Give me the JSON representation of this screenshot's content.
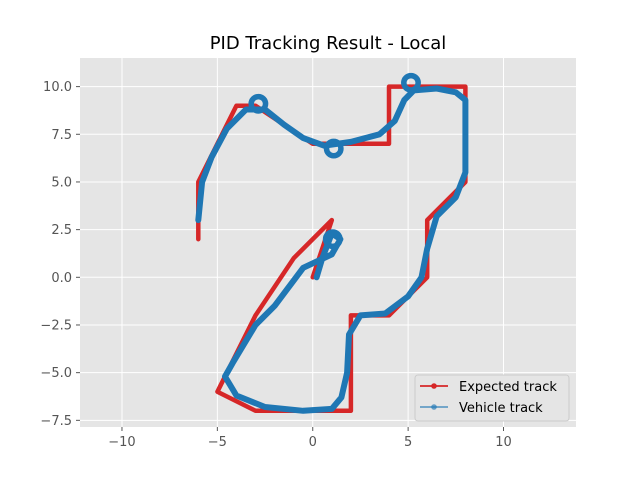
{
  "chart_data": {
    "type": "line",
    "title": "PID Tracking Result - Local",
    "xlabel": "",
    "ylabel": "",
    "xlim": [
      -12.2,
      13.8
    ],
    "ylim": [
      -7.85,
      11.5
    ],
    "x_ticks": [
      -10,
      -5,
      0,
      5,
      10
    ],
    "x_tick_labels": [
      "−10",
      "−5",
      "0",
      "5",
      "10"
    ],
    "y_ticks": [
      -7.5,
      -5.0,
      -2.5,
      0.0,
      2.5,
      5.0,
      7.5,
      10.0
    ],
    "y_tick_labels": [
      "−7.5",
      "−5.0",
      "−2.5",
      "0.0",
      "2.5",
      "5.0",
      "7.5",
      "10.0"
    ],
    "grid": true,
    "legend_position": "lower-right",
    "series": [
      {
        "name": "Expected track",
        "color": "#d62728",
        "points": [
          [
            1.0,
            3.0
          ],
          [
            0.0,
            0.0
          ],
          [
            1.0,
            3.0
          ],
          [
            -1.0,
            1.0
          ],
          [
            -3.0,
            -2.0
          ],
          [
            -5.0,
            -6.0
          ],
          [
            -3.0,
            -7.0
          ],
          [
            2.0,
            -7.0
          ],
          [
            2.0,
            -2.0
          ],
          [
            4.0,
            -2.0
          ],
          [
            6.0,
            0.0
          ],
          [
            6.0,
            3.0
          ],
          [
            8.0,
            5.0
          ],
          [
            8.0,
            10.0
          ],
          [
            4.0,
            10.0
          ],
          [
            4.0,
            7.0
          ],
          [
            0.0,
            7.0
          ],
          [
            -3.0,
            9.0
          ],
          [
            -4.0,
            9.0
          ],
          [
            -6.0,
            5.0
          ],
          [
            -6.0,
            2.0
          ]
        ]
      },
      {
        "name": "Vehicle track",
        "color": "#1f77b4",
        "points": [
          [
            0.2,
            0.0
          ],
          [
            0.5,
            1.0
          ],
          [
            1.0,
            2.3
          ],
          [
            1.45,
            2.0
          ],
          [
            1.0,
            1.2
          ],
          [
            -0.5,
            0.5
          ],
          [
            -2.0,
            -1.5
          ],
          [
            -3.0,
            -2.5
          ],
          [
            -4.2,
            -4.5
          ],
          [
            -4.6,
            -5.2
          ],
          [
            -4.0,
            -6.2
          ],
          [
            -2.5,
            -6.8
          ],
          [
            -0.5,
            -7.0
          ],
          [
            1.0,
            -6.9
          ],
          [
            1.5,
            -6.3
          ],
          [
            1.8,
            -5.0
          ],
          [
            1.9,
            -3.0
          ],
          [
            2.5,
            -2.0
          ],
          [
            3.8,
            -1.9
          ],
          [
            5.0,
            -1.0
          ],
          [
            5.7,
            0.0
          ],
          [
            6.0,
            1.5
          ],
          [
            6.5,
            3.2
          ],
          [
            7.5,
            4.2
          ],
          [
            8.0,
            5.5
          ],
          [
            8.0,
            9.3
          ],
          [
            7.5,
            9.7
          ],
          [
            6.5,
            9.9
          ],
          [
            5.3,
            9.8
          ],
          [
            4.8,
            9.3
          ],
          [
            4.3,
            8.2
          ],
          [
            3.5,
            7.5
          ],
          [
            2.0,
            7.1
          ],
          [
            0.6,
            6.9
          ],
          [
            -0.5,
            7.3
          ],
          [
            -1.5,
            8.0
          ],
          [
            -2.5,
            8.8
          ],
          [
            -3.5,
            8.8
          ],
          [
            -4.5,
            7.8
          ],
          [
            -5.3,
            6.3
          ],
          [
            -5.8,
            5.0
          ],
          [
            -6.0,
            3.0
          ]
        ],
        "loops": [
          {
            "x": 1.05,
            "y": 2.0,
            "r": 0.38
          },
          {
            "x": -2.85,
            "y": 9.1,
            "r": 0.38
          },
          {
            "x": 1.1,
            "y": 6.75,
            "r": 0.38
          },
          {
            "x": 5.15,
            "y": 10.2,
            "r": 0.38
          }
        ]
      }
    ]
  }
}
